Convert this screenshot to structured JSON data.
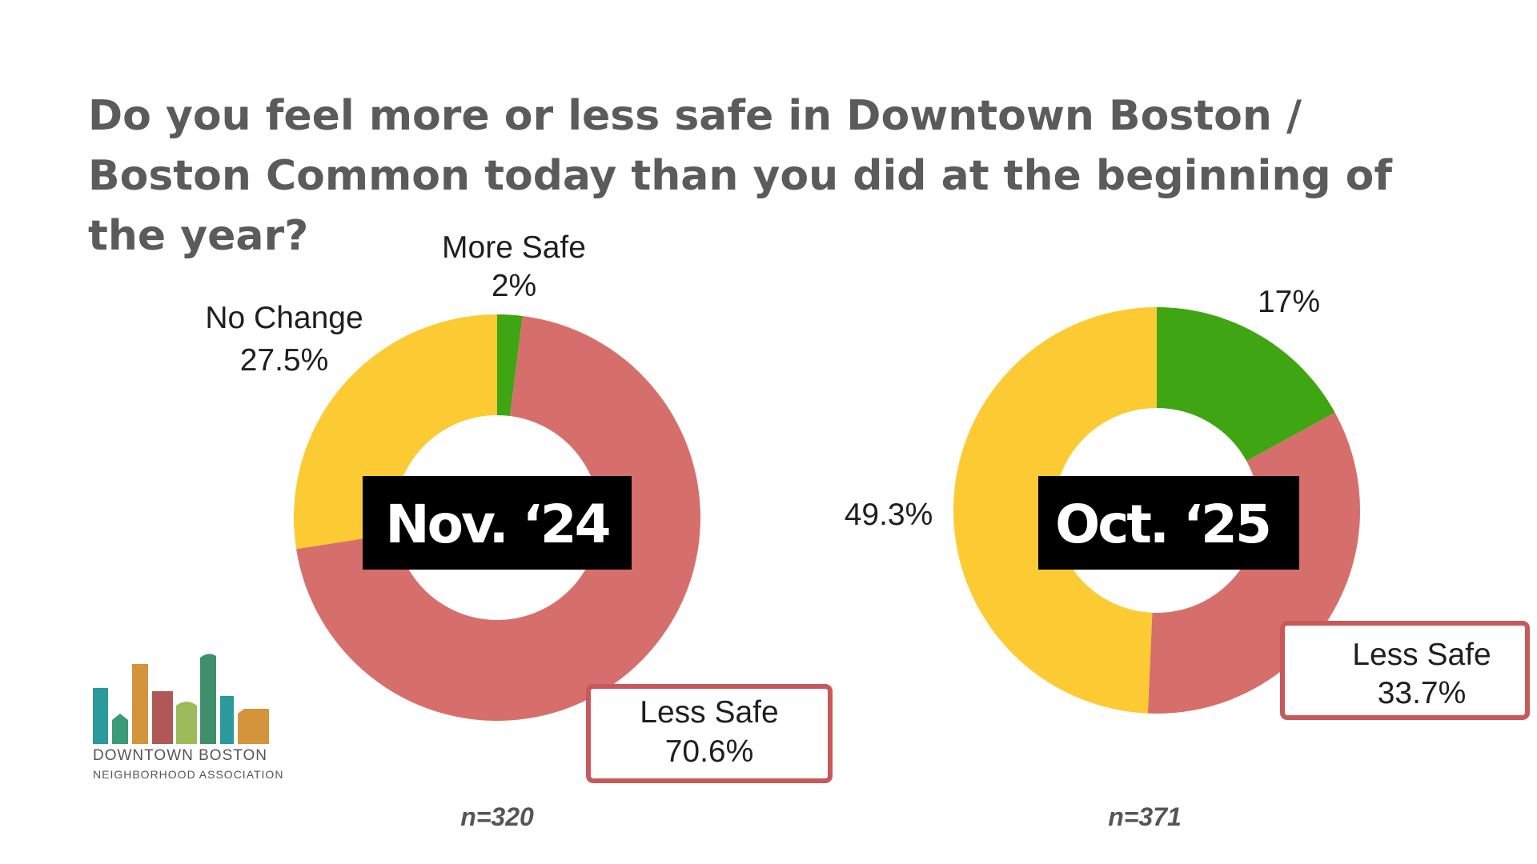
{
  "title": "Do you feel more or less safe in Downtown Boston / Boston Common today than you did at the beginning of the year?",
  "logo": {
    "line1": "DOWNTOWN BOSTON",
    "line2": "NEIGHBORHOOD ASSOCIATION",
    "bar_colors": [
      "#2a9a9c",
      "#3b9a78",
      "#d4943c",
      "#b25757",
      "#9dbb5b",
      "#3f8f6c",
      "#2a9a9c",
      "#d4943c"
    ]
  },
  "colors": {
    "more_safe": "#3fa513",
    "less_safe": "#d66f6c",
    "no_change": "#fccb33",
    "center_box": "#000000",
    "callout_border": "#c9585a"
  },
  "chart_data": [
    {
      "type": "pie",
      "variant": "donut",
      "center_label": "Nov. ‘24",
      "sample": "n=320",
      "slices": [
        {
          "name": "More Safe",
          "value": 2,
          "label": "2%",
          "color": "#3fa513"
        },
        {
          "name": "Less Safe",
          "value": 70.6,
          "label": "70.6%",
          "color": "#d66f6c"
        },
        {
          "name": "No Change",
          "value": 27.5,
          "label": "27.5%",
          "color": "#fccb33"
        }
      ]
    },
    {
      "type": "pie",
      "variant": "donut",
      "center_label": "Oct. ‘25",
      "sample": "n=371",
      "slices": [
        {
          "name": "",
          "value": 17,
          "label": "17%",
          "color": "#3fa513"
        },
        {
          "name": "Less Safe",
          "value": 33.7,
          "label": "33.7%",
          "color": "#d66f6c"
        },
        {
          "name": "",
          "value": 49.3,
          "label": "49.3%",
          "color": "#fccb33"
        }
      ]
    }
  ]
}
